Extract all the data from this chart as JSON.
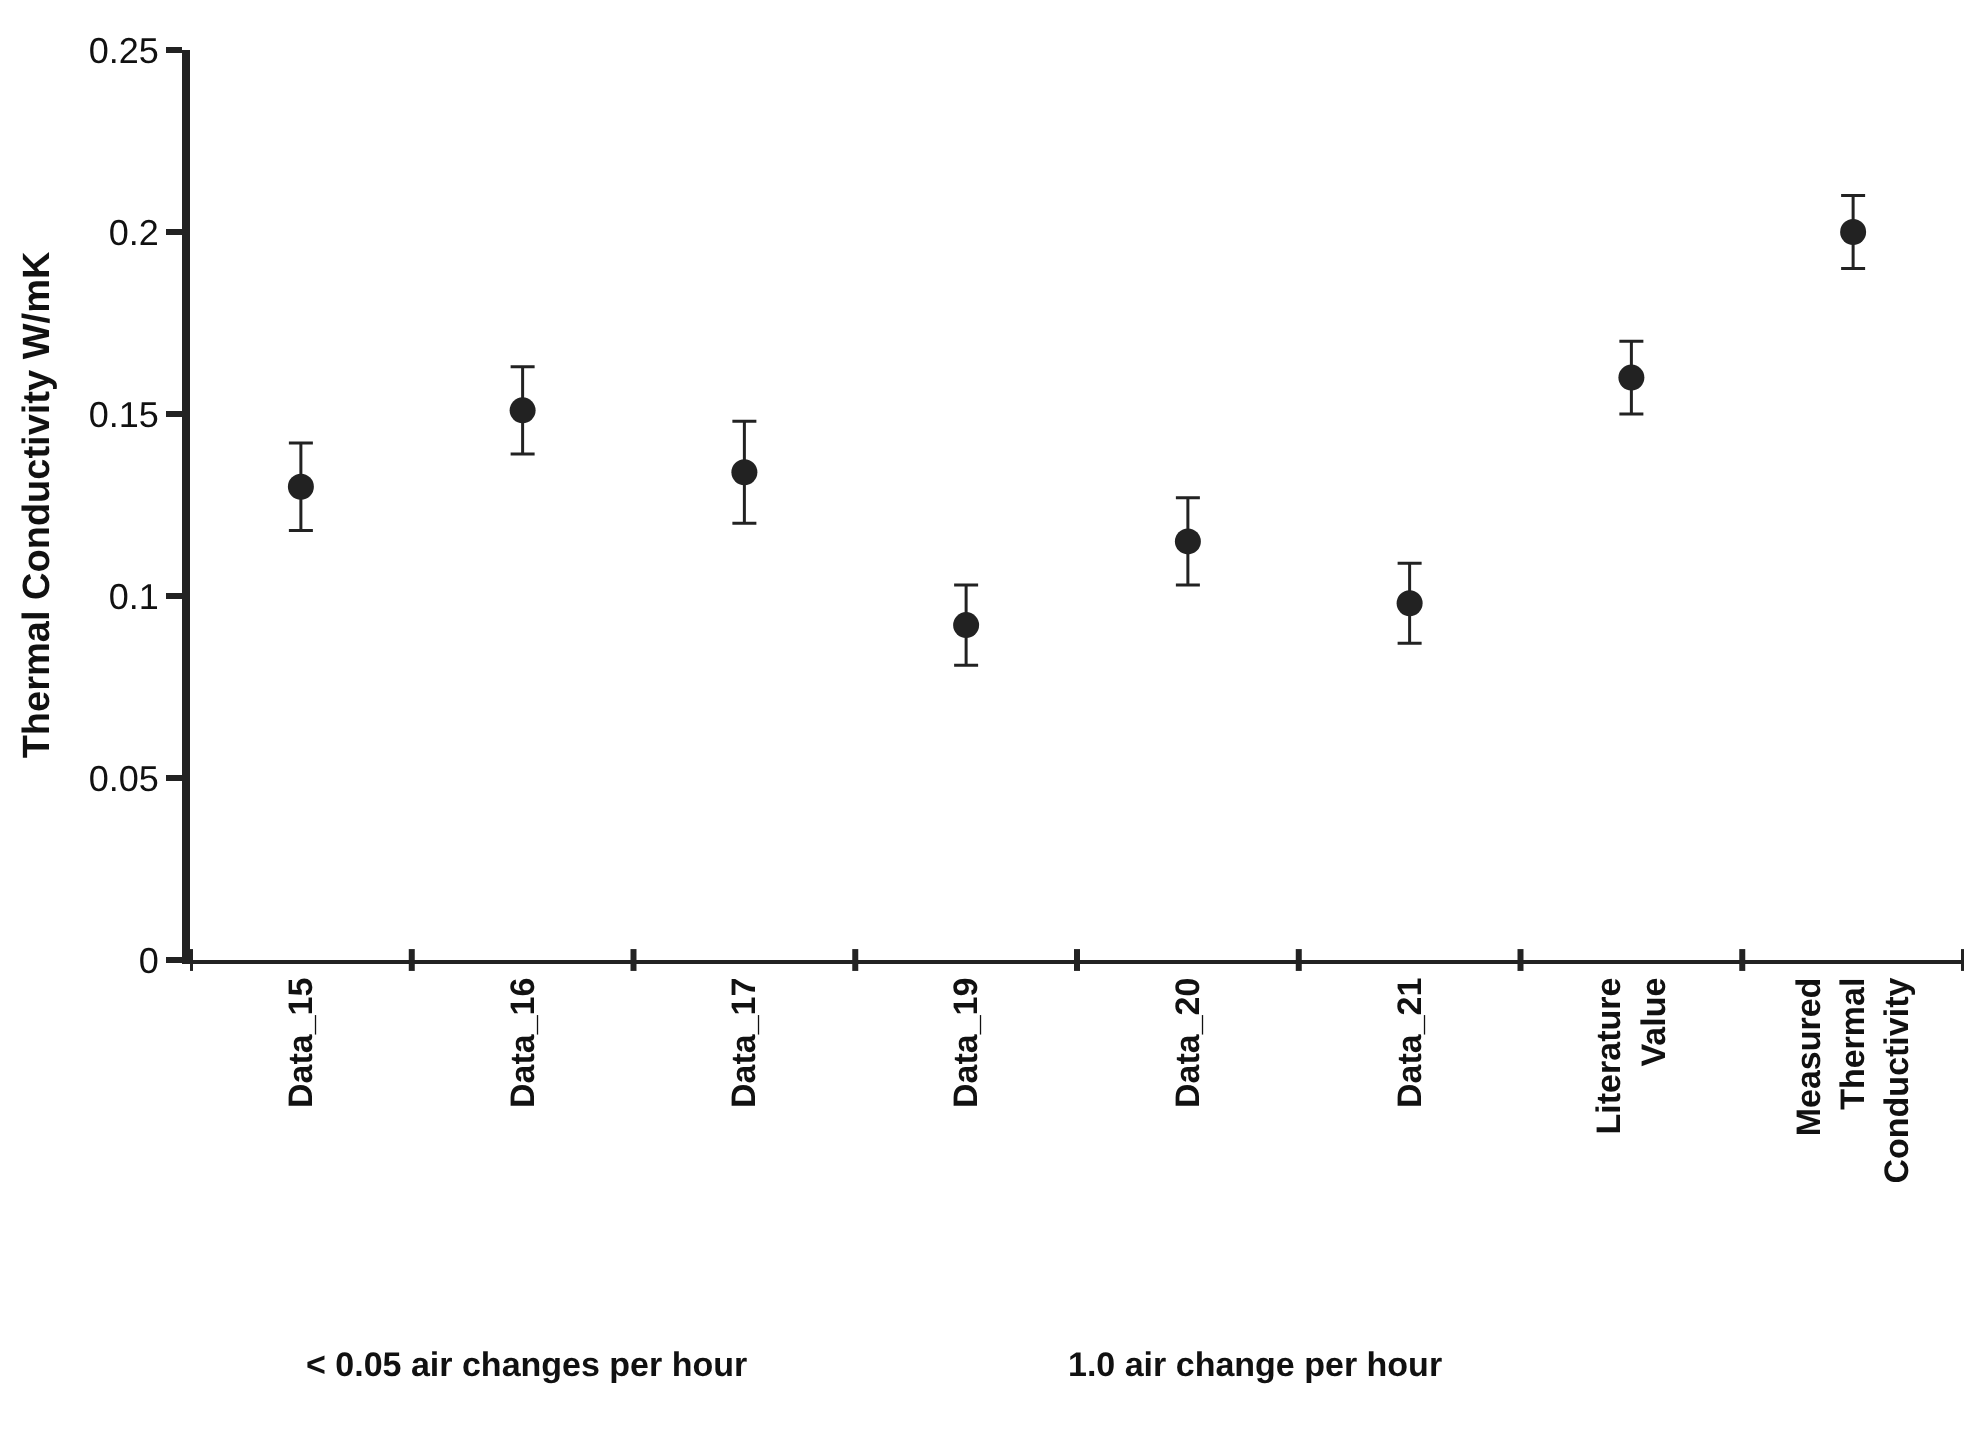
{
  "chart_data": {
    "type": "scatter",
    "ylabel": "Thermal Conductivity W/mK",
    "categories": [
      "Data_15",
      "Data_16",
      "Data_17",
      "Data_19",
      "Data_20",
      "Data_21",
      "Literature\nValue",
      "Measured\nThermal\nConductivity"
    ],
    "series": [
      {
        "color": "#222222",
        "values": [
          0.13,
          0.151,
          0.134,
          0.092,
          0.115,
          0.098,
          0.16,
          0.2
        ],
        "errors": [
          0.012,
          0.012,
          0.014,
          0.011,
          0.012,
          0.011,
          0.01,
          0.01
        ]
      }
    ],
    "ylim": [
      0,
      0.25
    ],
    "yticks": [
      0,
      0.05,
      0.1,
      0.15,
      0.2,
      0.25
    ],
    "marker": "circle",
    "annotations": [
      "< 0.05 air changes per hour",
      "1.0 air change per hour"
    ]
  }
}
